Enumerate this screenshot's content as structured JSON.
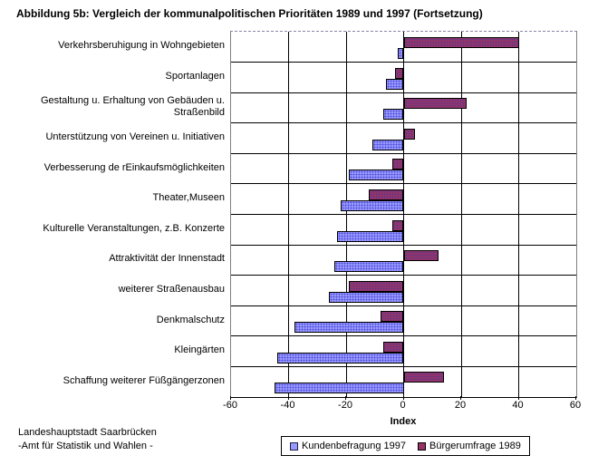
{
  "title": "Abbildung 5b: Vergleich der kommunalpolitischen Prioritäten 1989 und 1997 (Fortsetzung)",
  "footer": {
    "line1": "Landeshauptstadt Saarbrücken",
    "line2": "-Amt für Statistik und Wahlen -"
  },
  "chart_data": {
    "type": "bar",
    "orientation": "horizontal",
    "title": "Abbildung 5b: Vergleich der kommunalpolitischen Prioritäten 1989 und 1997 (Fortsetzung)",
    "xlabel": "Index",
    "xlim": [
      -60,
      60
    ],
    "xticks": [
      -60,
      -40,
      -20,
      0,
      20,
      40,
      60
    ],
    "grid": true,
    "legend_position": "bottom",
    "categories": [
      "Verkehrsberuhigung in Wohngebieten",
      "Sportanlagen",
      "Gestaltung u. Erhaltung von Gebäuden u. Straßenbild",
      "Unterstützung von Vereinen u. Initiativen",
      "Verbesserung de rEinkaufsmöglichkeiten",
      "Theater,Museen",
      "Kulturelle Veranstaltungen, z.B. Konzerte",
      "Attraktivität der Innenstadt",
      "weiterer Straßenausbau",
      "Denkmalschutz",
      "Kleingärten",
      "Schaffung weiterer Füßgängerzonen"
    ],
    "series": [
      {
        "name": "Kundenbefragung 1997",
        "color": "#9999FF",
        "values": [
          -2,
          -6,
          -7,
          -11,
          -19,
          -22,
          -23,
          -24,
          -26,
          -38,
          -44,
          -45
        ]
      },
      {
        "name": "Bürgerumfrage 1989",
        "color": "#993366",
        "values": [
          40,
          -3,
          22,
          4,
          -4,
          -12,
          -4,
          12,
          -19,
          -8,
          -7,
          14
        ]
      }
    ]
  }
}
